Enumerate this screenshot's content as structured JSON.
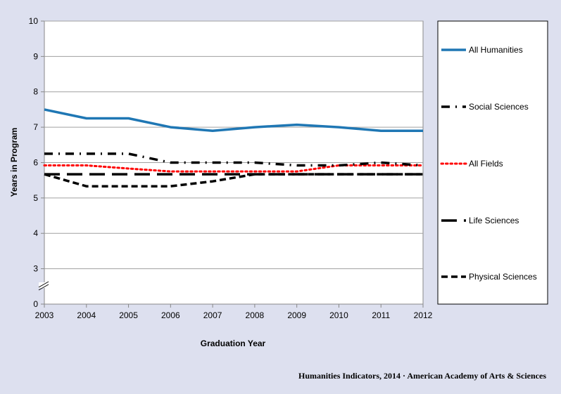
{
  "chart_data": {
    "type": "line",
    "xlabel": "Graduation Year",
    "ylabel": "Years in Program",
    "x": [
      2003,
      2004,
      2005,
      2006,
      2007,
      2008,
      2009,
      2010,
      2011,
      2012
    ],
    "x_tick_labels": [
      "2003",
      "2004",
      "2005",
      "2006",
      "2007",
      "2008",
      "2009",
      "2010",
      "2011",
      "2012"
    ],
    "y_tick_labels": [
      "0",
      "3",
      "4",
      "5",
      "6",
      "7",
      "8",
      "9",
      "10"
    ],
    "y_axis_break": "between 0 and 3",
    "ylim": [
      0,
      10
    ],
    "grid": "horizontal",
    "legend_position": "right",
    "series": [
      {
        "name": "All Humanities",
        "color": "#1f77b4",
        "style": "solid",
        "values": [
          7.5,
          7.25,
          7.25,
          7.0,
          6.9,
          7.0,
          7.07,
          7.0,
          6.9,
          6.9
        ]
      },
      {
        "name": "Social Sciences",
        "color": "#000000",
        "style": "dash-dot",
        "values": [
          6.25,
          6.25,
          6.25,
          6.0,
          6.0,
          6.0,
          5.92,
          5.92,
          6.0,
          5.92
        ]
      },
      {
        "name": "All Fields",
        "color": "#ff0000",
        "style": "dotted",
        "values": [
          5.92,
          5.92,
          5.83,
          5.75,
          5.75,
          5.75,
          5.75,
          5.92,
          5.92,
          5.92
        ]
      },
      {
        "name": "Life Sciences",
        "color": "#000000",
        "style": "long-dash",
        "values": [
          5.67,
          5.67,
          5.67,
          5.67,
          5.67,
          5.67,
          5.67,
          5.67,
          5.67,
          5.67
        ]
      },
      {
        "name": "Physical Sciences",
        "color": "#000000",
        "style": "dashed",
        "values": [
          5.67,
          5.33,
          5.33,
          5.33,
          5.47,
          5.67,
          5.67,
          5.67,
          5.67,
          5.67
        ]
      }
    ]
  },
  "footer": {
    "source": "Humanities Indicators, 2014 · American Academy of Arts & Sciences"
  }
}
